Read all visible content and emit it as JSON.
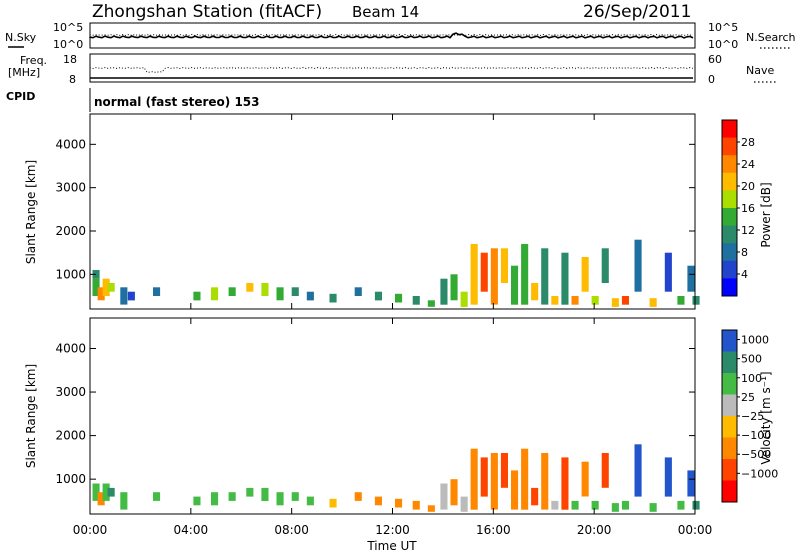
{
  "header": {
    "station": "Zhongshan Station (fitACF)",
    "beam": "Beam 14",
    "date": "26/Sep/2011"
  },
  "strip_noise": {
    "left_label": "N.Sky",
    "right_label": "N.Search",
    "left_ticks": [
      "10^5",
      "10^0"
    ],
    "right_ticks": [
      "10^5",
      "10^0"
    ]
  },
  "strip_freq": {
    "left_label_top": "Freq.",
    "left_label_bottom": "[MHz]",
    "right_label": "Nave",
    "left_ticks": [
      "18",
      "8"
    ],
    "right_ticks": [
      "60",
      "0"
    ]
  },
  "strip_cpid": {
    "label": "CPID",
    "text": "normal (fast stereo) 153"
  },
  "axes": {
    "ylabel": "Slant Range [km]",
    "xlabel": "Time UT",
    "yticks": [
      "4000",
      "3000",
      "2000",
      "1000"
    ],
    "xticks": [
      "00:00",
      "04:00",
      "08:00",
      "12:00",
      "16:00",
      "20:00",
      "00:00"
    ]
  },
  "colorbars": {
    "power": {
      "label": "Power [dB]",
      "ticks": [
        "28",
        "24",
        "20",
        "16",
        "12",
        "8",
        "4"
      ],
      "colors": [
        "#ff0000",
        "#ff4400",
        "#ff8800",
        "#ffbb00",
        "#aadd00",
        "#33aa33",
        "#2a8a6a",
        "#1f6fa0",
        "#2244cc",
        "#0000ff"
      ]
    },
    "velocity": {
      "label": "Velocity [m s⁻¹]",
      "ticks": [
        "1000",
        "500",
        "100",
        "25",
        "−25",
        "−100",
        "−500",
        "−1000"
      ],
      "colors": [
        "#2255cc",
        "#2a8a6a",
        "#44bb44",
        "#bbbbbb",
        "#ffbb00",
        "#ff8800",
        "#ff4400",
        "#ff0000"
      ]
    }
  },
  "chart_data": [
    {
      "type": "heatmap",
      "name": "power",
      "x_range": [
        0,
        24
      ],
      "ylim": [
        200,
        4700
      ],
      "cbar_range": [
        0,
        32
      ],
      "cells": [
        [
          0.1,
          500,
          900,
          15
        ],
        [
          0.1,
          900,
          1100,
          10
        ],
        [
          0.3,
          400,
          700,
          24
        ],
        [
          0.5,
          500,
          900,
          20
        ],
        [
          0.7,
          600,
          800,
          17
        ],
        [
          1.2,
          300,
          700,
          8
        ],
        [
          1.5,
          400,
          600,
          6
        ],
        [
          2.5,
          500,
          700,
          7
        ],
        [
          4.1,
          400,
          600,
          15
        ],
        [
          4.8,
          400,
          700,
          18
        ],
        [
          5.5,
          500,
          700,
          16
        ],
        [
          6.2,
          600,
          800,
          20
        ],
        [
          6.8,
          500,
          800,
          18
        ],
        [
          7.4,
          400,
          700,
          16
        ],
        [
          8.0,
          500,
          700,
          12
        ],
        [
          8.6,
          400,
          600,
          9
        ],
        [
          9.5,
          350,
          550,
          10
        ],
        [
          10.5,
          500,
          700,
          8
        ],
        [
          11.3,
          400,
          600,
          10
        ],
        [
          12.1,
          350,
          550,
          14
        ],
        [
          12.8,
          300,
          500,
          12
        ],
        [
          13.4,
          250,
          400,
          16
        ],
        [
          13.9,
          300,
          900,
          10
        ],
        [
          14.3,
          400,
          1000,
          14
        ],
        [
          14.7,
          250,
          600,
          18
        ],
        [
          15.1,
          300,
          1700,
          20
        ],
        [
          15.5,
          600,
          1500,
          26
        ],
        [
          15.9,
          300,
          1600,
          24
        ],
        [
          16.3,
          800,
          1600,
          22
        ],
        [
          16.7,
          300,
          1200,
          16
        ],
        [
          17.1,
          300,
          1700,
          14
        ],
        [
          17.5,
          400,
          800,
          20
        ],
        [
          17.9,
          300,
          1600,
          10
        ],
        [
          18.3,
          300,
          500,
          22
        ],
        [
          18.7,
          300,
          1500,
          12
        ],
        [
          19.1,
          300,
          500,
          24
        ],
        [
          19.5,
          600,
          1400,
          20
        ],
        [
          19.9,
          300,
          500,
          18
        ],
        [
          20.3,
          800,
          1600,
          10
        ],
        [
          20.7,
          250,
          450,
          22
        ],
        [
          21.1,
          300,
          500,
          26
        ],
        [
          21.6,
          600,
          1800,
          8
        ],
        [
          22.2,
          250,
          450,
          20
        ],
        [
          22.8,
          600,
          1500,
          6
        ],
        [
          23.3,
          300,
          500,
          16
        ],
        [
          23.7,
          600,
          1200,
          8
        ],
        [
          23.9,
          300,
          500,
          10
        ]
      ]
    },
    {
      "type": "heatmap",
      "name": "velocity",
      "x_range": [
        0,
        24
      ],
      "ylim": [
        200,
        4700
      ],
      "cbar_values": [
        1000,
        500,
        100,
        25,
        -25,
        -100,
        -500,
        -1000
      ],
      "cells": [
        [
          0.1,
          500,
          900,
          100
        ],
        [
          0.3,
          400,
          700,
          -100
        ],
        [
          0.5,
          500,
          900,
          100
        ],
        [
          0.7,
          600,
          800,
          500
        ],
        [
          1.2,
          300,
          700,
          100
        ],
        [
          2.5,
          500,
          700,
          100
        ],
        [
          4.1,
          400,
          600,
          100
        ],
        [
          4.8,
          400,
          700,
          100
        ],
        [
          5.5,
          500,
          700,
          100
        ],
        [
          6.2,
          600,
          800,
          100
        ],
        [
          6.8,
          500,
          800,
          100
        ],
        [
          7.4,
          400,
          700,
          100
        ],
        [
          8.0,
          500,
          700,
          100
        ],
        [
          8.6,
          400,
          600,
          100
        ],
        [
          9.5,
          350,
          550,
          -25
        ],
        [
          10.5,
          500,
          700,
          -100
        ],
        [
          11.3,
          400,
          600,
          -100
        ],
        [
          12.1,
          350,
          550,
          -100
        ],
        [
          12.8,
          300,
          500,
          -100
        ],
        [
          13.4,
          250,
          400,
          -100
        ],
        [
          13.9,
          300,
          900,
          25
        ],
        [
          14.3,
          400,
          1000,
          -100
        ],
        [
          14.7,
          250,
          600,
          25
        ],
        [
          15.1,
          300,
          1700,
          -100
        ],
        [
          15.5,
          600,
          1500,
          -500
        ],
        [
          15.9,
          300,
          1600,
          -100
        ],
        [
          16.3,
          800,
          1600,
          -500
        ],
        [
          16.7,
          300,
          1200,
          -100
        ],
        [
          17.1,
          300,
          1700,
          -100
        ],
        [
          17.5,
          400,
          800,
          -500
        ],
        [
          17.9,
          300,
          1600,
          -100
        ],
        [
          18.3,
          300,
          500,
          25
        ],
        [
          18.7,
          300,
          1500,
          -500
        ],
        [
          19.1,
          300,
          500,
          100
        ],
        [
          19.5,
          600,
          1400,
          -100
        ],
        [
          19.9,
          300,
          500,
          100
        ],
        [
          20.3,
          800,
          1600,
          -500
        ],
        [
          20.7,
          250,
          450,
          100
        ],
        [
          21.1,
          300,
          500,
          100
        ],
        [
          21.6,
          600,
          1800,
          1000
        ],
        [
          22.2,
          250,
          450,
          100
        ],
        [
          22.8,
          600,
          1500,
          1000
        ],
        [
          23.3,
          300,
          500,
          100
        ],
        [
          23.7,
          600,
          1200,
          1000
        ],
        [
          23.9,
          300,
          500,
          500
        ]
      ]
    }
  ]
}
